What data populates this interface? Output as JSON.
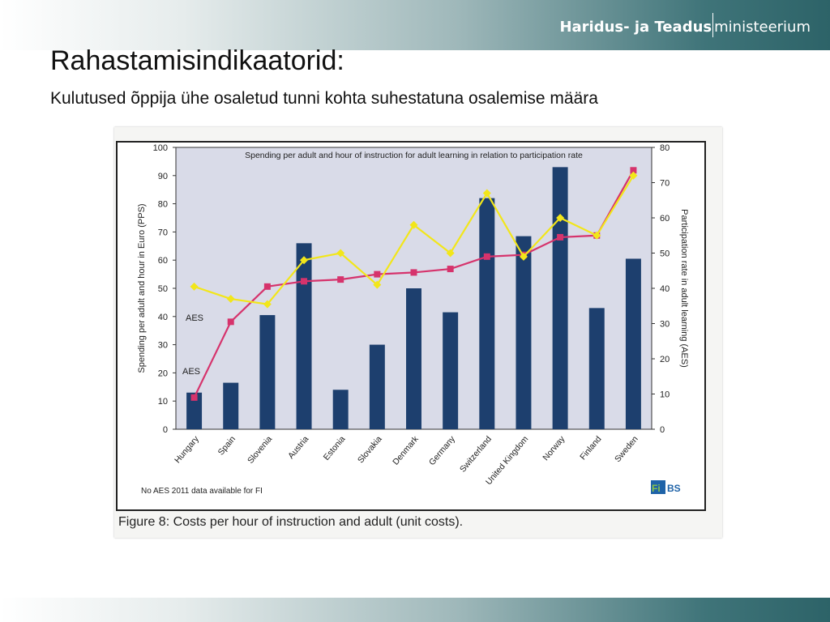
{
  "header": {
    "logo_bold": "Haridus- ja Teadus",
    "logo_light": "ministeerium"
  },
  "slide": {
    "title": "Rahastamisindikaatorid:",
    "subtitle": "Kulutused õppija ühe osaletud tunni kohta suhestatuna osalemise määra"
  },
  "chart_data": {
    "type": "bar",
    "title": "Spending per adult and hour of instruction for adult learning in relation to participation rate",
    "ylabel": "Spending per adult and hour in Euro (PPS)",
    "y2label": "Participation rate in adult learning (AES)",
    "ylim": [
      0,
      100
    ],
    "y2lim": [
      0,
      80
    ],
    "yticks": [
      0,
      10,
      20,
      30,
      40,
      50,
      60,
      70,
      80,
      90,
      100
    ],
    "y2ticks": [
      0,
      10,
      20,
      30,
      40,
      50,
      60,
      70,
      80
    ],
    "categories": [
      "Hungary",
      "Spain",
      "Slovenia",
      "Austria",
      "Estonia",
      "Slovakia",
      "Denmark",
      "Germany",
      "Switzerland",
      "United Kingdom",
      "Norway",
      "Finland",
      "Sweden"
    ],
    "series": [
      {
        "kind": "bar",
        "axis": "left",
        "color": "#1d3f6e",
        "values": [
          13,
          16.5,
          40.5,
          66,
          14,
          30,
          50,
          41.5,
          82,
          68.5,
          93,
          43,
          60.5
        ]
      },
      {
        "kind": "line",
        "axis": "right",
        "color": "#d6336c",
        "marker": "square",
        "values": [
          9,
          30.5,
          40.5,
          42,
          42.5,
          44,
          44.5,
          45.5,
          49,
          49.5,
          54.5,
          55,
          73.5
        ]
      },
      {
        "kind": "line",
        "axis": "right",
        "color": "#f2e61a",
        "marker": "diamond",
        "values": [
          40.5,
          37,
          35.5,
          48,
          50,
          41,
          58,
          50,
          67,
          49,
          60,
          55,
          72
        ]
      }
    ],
    "annotations": [
      "AES",
      "AES"
    ],
    "note": "No AES 2011 data available for FI",
    "source_logo": "FiBS",
    "grid": false,
    "legend": "none"
  },
  "figure": {
    "caption": "Figure 8: Costs per hour of instruction and adult (unit costs)."
  }
}
